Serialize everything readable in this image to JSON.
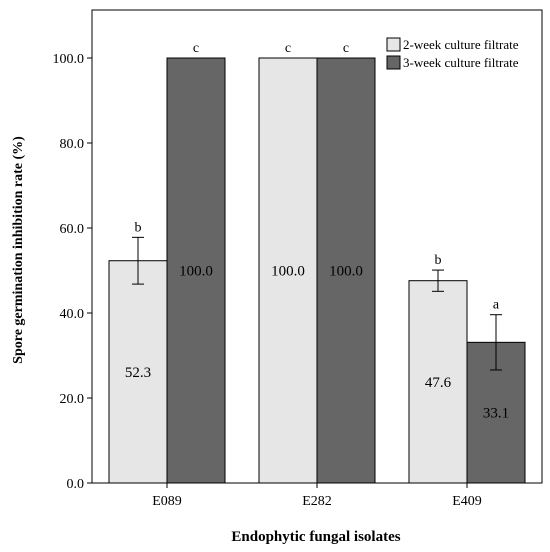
{
  "chart_data": {
    "type": "bar",
    "categories": [
      "E089",
      "E282",
      "E409"
    ],
    "series": [
      {
        "name": "2-week culture filtrate",
        "color": "#e6e6e6",
        "values": [
          52.3,
          100.0,
          47.6
        ],
        "errors": [
          5.5,
          0.0,
          2.5
        ],
        "value_labels": [
          "52.3",
          "100.0",
          "47.6"
        ],
        "letters": [
          "b",
          "c",
          "b"
        ]
      },
      {
        "name": "3-week culture filtrate",
        "color": "#666666",
        "values": [
          100.0,
          100.0,
          33.1
        ],
        "errors": [
          0.0,
          0.0,
          6.5
        ],
        "value_labels": [
          "100.0",
          "100.0",
          "33.1"
        ],
        "letters": [
          "c",
          "c",
          "a"
        ]
      }
    ],
    "xlabel": "Endophytic fungal isolates",
    "ylabel": "Spore germination inhibition rate (%)",
    "ylim": [
      0,
      100
    ],
    "yticks": [
      0,
      20,
      40,
      60,
      80,
      100
    ],
    "ytick_labels": [
      "0.0",
      "20.0",
      "40.0",
      "60.0",
      "80.0",
      "100.0"
    ],
    "grid": false,
    "legend_position": "top-right"
  }
}
